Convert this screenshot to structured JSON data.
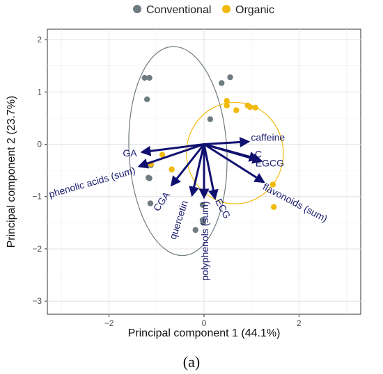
{
  "chart_data": {
    "type": "scatter",
    "xlabel": "Principal component 1 (44.1%)",
    "ylabel": "Principal component 2 (23.7%)",
    "panel_label": "(a)",
    "xlim": [
      -3.3,
      3.3
    ],
    "ylim": [
      -3.25,
      2.2
    ],
    "x_ticks": [
      -2,
      0,
      2
    ],
    "y_ticks": [
      2,
      1,
      0,
      -1,
      -2,
      -3
    ],
    "grid": true,
    "legend_position": "top",
    "colors": {
      "Conventional": "#6e7b80",
      "Organic": "#f0b90b",
      "loading": "#101070"
    },
    "series": [
      {
        "name": "Conventional",
        "points": [
          [
            -1.25,
            1.27
          ],
          [
            -1.15,
            1.27
          ],
          [
            -1.2,
            0.86
          ],
          [
            0.55,
            1.28
          ],
          [
            0.37,
            1.17
          ],
          [
            0.13,
            0.48
          ],
          [
            -1.12,
            -0.4
          ],
          [
            -1.17,
            -0.64
          ],
          [
            -1.15,
            -0.65
          ],
          [
            -1.13,
            -1.13
          ],
          [
            -0.03,
            -1.45
          ],
          [
            -0.02,
            -1.5
          ],
          [
            -0.18,
            -1.64
          ],
          [
            -0.03,
            -1.16
          ]
        ]
      },
      {
        "name": "Organic",
        "points": [
          [
            0.48,
            0.83
          ],
          [
            0.48,
            0.74
          ],
          [
            0.68,
            0.65
          ],
          [
            0.92,
            0.74
          ],
          [
            0.97,
            0.71
          ],
          [
            1.08,
            0.7
          ],
          [
            -0.88,
            -0.2
          ],
          [
            -1.12,
            -0.38
          ],
          [
            -0.68,
            -0.48
          ],
          [
            1.45,
            -0.77
          ],
          [
            1.47,
            -1.2
          ]
        ]
      }
    ],
    "ellipses": [
      {
        "group": "Conventional",
        "cx": -0.55,
        "cy": -0.13,
        "rx": 1.03,
        "ry": 2.0,
        "angle_deg": -3
      },
      {
        "group": "Organic",
        "cx": 0.65,
        "cy": -0.17,
        "rx": 1.02,
        "ry": 0.97,
        "angle_deg": 0
      }
    ],
    "loadings": [
      {
        "label": "caffeine",
        "x": 0.93,
        "y": 0.05
      },
      {
        "label": "C",
        "x": 1.13,
        "y": -0.28
      },
      {
        "label": "EGCG",
        "x": 1.2,
        "y": -0.32
      },
      {
        "label": "flavonoids (sum)",
        "x": 1.25,
        "y": -0.72
      },
      {
        "label": "GA",
        "x": -1.3,
        "y": -0.15
      },
      {
        "label": "phenolic acids (sum)",
        "x": -1.36,
        "y": -0.42
      },
      {
        "label": "CGA",
        "x": -0.68,
        "y": -0.78
      },
      {
        "label": "quercetin",
        "x": -0.25,
        "y": -0.97
      },
      {
        "label": "polyphenols (sum)",
        "x": 0.0,
        "y": -1.01
      },
      {
        "label": "ECG",
        "x": 0.23,
        "y": -1.03
      }
    ]
  }
}
